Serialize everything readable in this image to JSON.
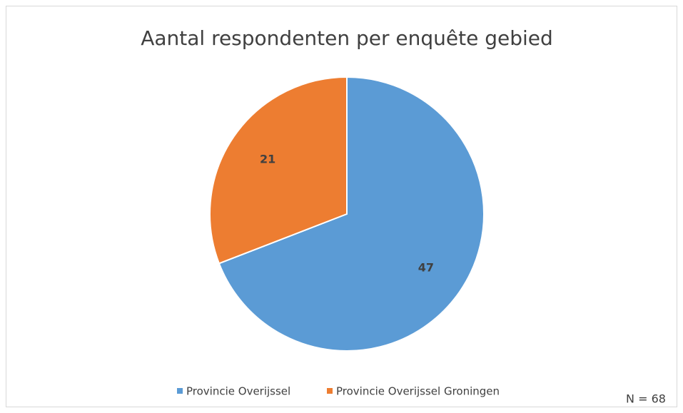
{
  "chart_data": {
    "type": "pie",
    "title": "Aantal respondenten per enquête gebied",
    "categories": [
      "Provincie Overijssel",
      "Provincie Overijssel Groningen"
    ],
    "values": [
      47,
      21
    ],
    "colors": [
      "#5b9bd5",
      "#ed7d31"
    ],
    "annotation": "N = 68",
    "legend": "bottom"
  }
}
